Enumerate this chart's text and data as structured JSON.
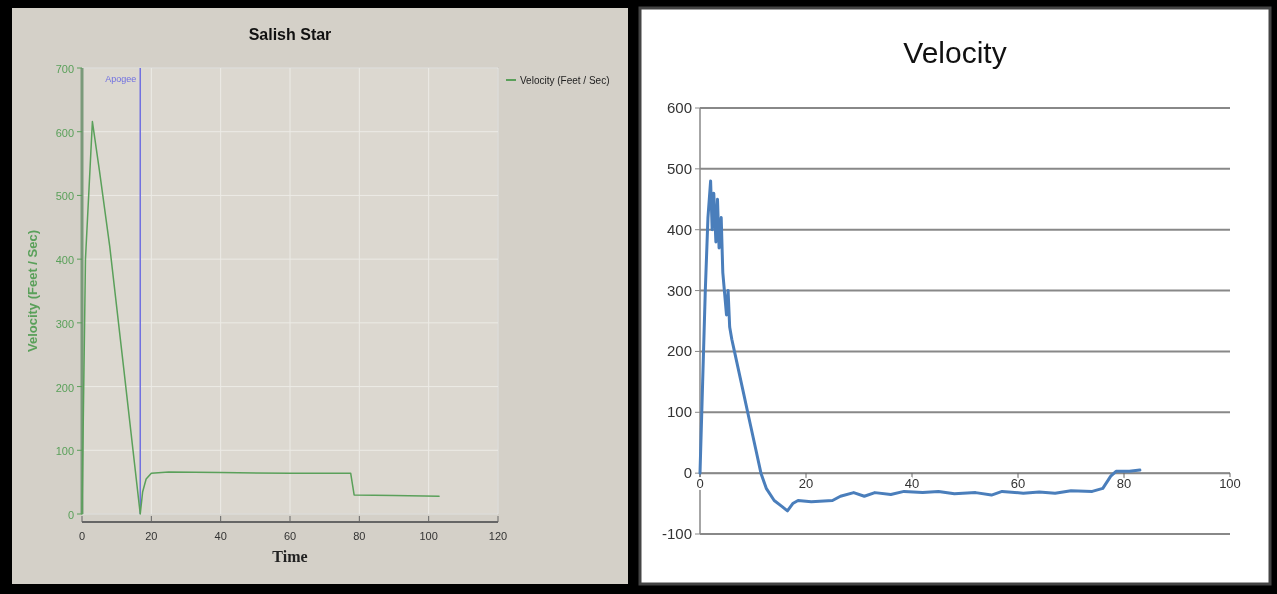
{
  "chart_data": [
    {
      "type": "line",
      "title": "Salish Star",
      "xlabel": "Time",
      "ylabel": "Velocity (Feet / Sec)",
      "xlim": [
        0,
        120
      ],
      "xticks": [
        0,
        20,
        40,
        60,
        80,
        100,
        120
      ],
      "ylim": [
        0,
        700
      ],
      "yticks": [
        0,
        100,
        200,
        300,
        400,
        500,
        600,
        700
      ],
      "grid": true,
      "legend": "top right",
      "series": [
        {
          "name": "Velocity (Feet / Sec)",
          "color": "#5aa05a",
          "x": [
            0,
            1,
            3,
            5,
            8,
            12,
            16.8,
            17.5,
            18.5,
            20,
            25,
            40,
            60,
            77.5,
            78.5,
            90,
            103
          ],
          "values": [
            0,
            400,
            616,
            540,
            420,
            230,
            0,
            35,
            55,
            64,
            66,
            65,
            64,
            64,
            30,
            29,
            28
          ]
        }
      ],
      "ref_lines": [
        {
          "axis": "x",
          "value": 16.8,
          "label": "Apogee",
          "color": "#7070e0"
        }
      ]
    },
    {
      "type": "line",
      "title": "Velocity",
      "xlim": [
        0,
        100
      ],
      "xticks": [
        0,
        20,
        40,
        60,
        80,
        100
      ],
      "ylim": [
        -100,
        600
      ],
      "yticks": [
        -100,
        0,
        100,
        200,
        300,
        400,
        500,
        600
      ],
      "grid": "y",
      "series": [
        {
          "color": "#4a7ebb",
          "x": [
            0,
            0.5,
            1,
            1.5,
            2,
            2.3,
            2.6,
            3,
            3.3,
            3.6,
            4,
            4.3,
            4.6,
            5,
            5.3,
            5.6,
            6,
            6.5,
            8,
            9.5,
            10.5,
            11.5,
            12.5,
            14,
            15.5,
            16.5,
            17.5,
            18.5,
            21,
            25,
            26.5,
            29,
            31,
            33,
            36,
            38.5,
            42,
            45,
            48,
            52,
            55,
            57,
            61,
            64,
            67,
            70,
            74,
            76,
            77.5,
            78.5,
            81,
            83
          ],
          "values": [
            0,
            150,
            300,
            420,
            480,
            400,
            460,
            380,
            450,
            370,
            420,
            330,
            300,
            260,
            300,
            240,
            220,
            200,
            140,
            80,
            40,
            0,
            -25,
            -45,
            -55,
            -62,
            -50,
            -45,
            -47,
            -45,
            -38,
            -32,
            -38,
            -32,
            -35,
            -30,
            -32,
            -30,
            -34,
            -32,
            -36,
            -30,
            -33,
            -31,
            -33,
            -29,
            -30,
            -25,
            -5,
            3,
            3,
            5
          ]
        }
      ]
    }
  ]
}
